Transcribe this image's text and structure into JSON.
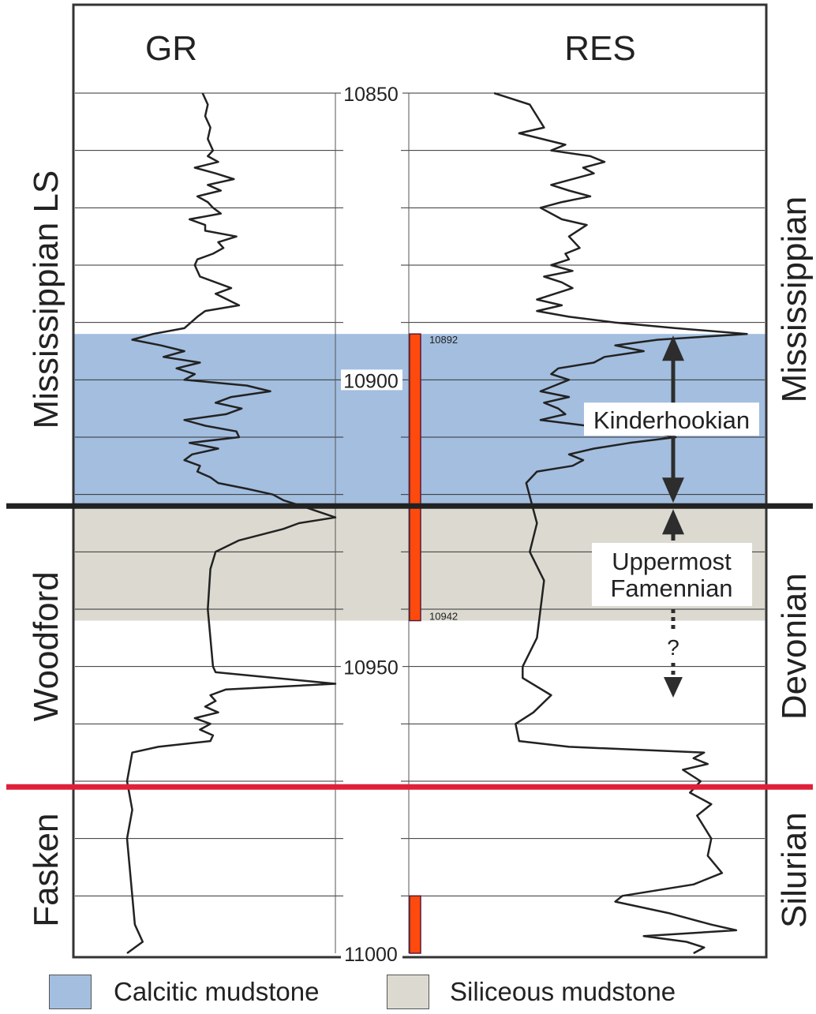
{
  "chart_data": {
    "type": "well-log",
    "tracks": [
      {
        "name": "GR",
        "curve": [
          [
            10850,
            0.49
          ],
          [
            10852,
            0.51
          ],
          [
            10854,
            0.5
          ],
          [
            10856,
            0.52
          ],
          [
            10858,
            0.51
          ],
          [
            10860,
            0.53
          ],
          [
            10861,
            0.51
          ],
          [
            10862,
            0.55
          ],
          [
            10863,
            0.46
          ],
          [
            10864,
            0.54
          ],
          [
            10865,
            0.61
          ],
          [
            10866,
            0.51
          ],
          [
            10867,
            0.56
          ],
          [
            10868,
            0.47
          ],
          [
            10869,
            0.51
          ],
          [
            10870,
            0.53
          ],
          [
            10871,
            0.56
          ],
          [
            10872,
            0.44
          ],
          [
            10873,
            0.5
          ],
          [
            10874,
            0.5
          ],
          [
            10875,
            0.62
          ],
          [
            10876,
            0.55
          ],
          [
            10877,
            0.57
          ],
          [
            10878,
            0.53
          ],
          [
            10879,
            0.47
          ],
          [
            10880,
            0.46
          ],
          [
            10882,
            0.48
          ],
          [
            10884,
            0.6
          ],
          [
            10885,
            0.54
          ],
          [
            10887,
            0.63
          ],
          [
            10888,
            0.5
          ],
          [
            10889,
            0.47
          ],
          [
            10891,
            0.42
          ],
          [
            10892,
            0.3
          ],
          [
            10893,
            0.22
          ],
          [
            10894,
            0.33
          ],
          [
            10895,
            0.42
          ],
          [
            10896,
            0.34
          ],
          [
            10897,
            0.48
          ],
          [
            10898,
            0.39
          ],
          [
            10899,
            0.46
          ],
          [
            10900,
            0.42
          ],
          [
            10901,
            0.66
          ],
          [
            10902,
            0.75
          ],
          [
            10903,
            0.6
          ],
          [
            10904,
            0.54
          ],
          [
            10905,
            0.64
          ],
          [
            10906,
            0.58
          ],
          [
            10907,
            0.42
          ],
          [
            10908,
            0.5
          ],
          [
            10909,
            0.62
          ],
          [
            10910,
            0.63
          ],
          [
            10911,
            0.44
          ],
          [
            10912,
            0.55
          ],
          [
            10913,
            0.45
          ],
          [
            10914,
            0.42
          ],
          [
            10915,
            0.48
          ],
          [
            10916,
            0.47
          ],
          [
            10917,
            0.52
          ],
          [
            10918,
            0.55
          ],
          [
            10919,
            0.66
          ],
          [
            10920,
            0.76
          ],
          [
            10921,
            0.8
          ],
          [
            10922,
            0.87
          ],
          [
            10924,
            1.0
          ],
          [
            10925,
            0.86
          ],
          [
            10926,
            0.8
          ],
          [
            10928,
            0.63
          ],
          [
            10930,
            0.54
          ],
          [
            10933,
            0.52
          ],
          [
            10940,
            0.51
          ],
          [
            10950,
            0.53
          ],
          [
            10951,
            0.54
          ],
          [
            10953,
            1.0
          ],
          [
            10954,
            0.58
          ],
          [
            10955,
            0.52
          ],
          [
            10956,
            0.54
          ],
          [
            10957,
            0.5
          ],
          [
            10958,
            0.55
          ],
          [
            10959,
            0.46
          ],
          [
            10960,
            0.52
          ],
          [
            10961,
            0.48
          ],
          [
            10962,
            0.53
          ],
          [
            10963,
            0.52
          ],
          [
            10964,
            0.32
          ],
          [
            10965,
            0.22
          ],
          [
            10970,
            0.2
          ],
          [
            10975,
            0.22
          ],
          [
            10980,
            0.2
          ],
          [
            10985,
            0.21
          ],
          [
            10990,
            0.22
          ],
          [
            10995,
            0.23
          ],
          [
            10998,
            0.26
          ],
          [
            11000,
            0.2
          ]
        ]
      },
      {
        "name": "RES",
        "curve": [
          [
            10850,
            0.24
          ],
          [
            10852,
            0.34
          ],
          [
            10854,
            0.36
          ],
          [
            10856,
            0.38
          ],
          [
            10857,
            0.31
          ],
          [
            10859,
            0.44
          ],
          [
            10860,
            0.4
          ],
          [
            10861,
            0.51
          ],
          [
            10862,
            0.55
          ],
          [
            10863,
            0.49
          ],
          [
            10864,
            0.52
          ],
          [
            10866,
            0.4
          ],
          [
            10867,
            0.45
          ],
          [
            10868,
            0.51
          ],
          [
            10869,
            0.43
          ],
          [
            10870,
            0.37
          ],
          [
            10872,
            0.43
          ],
          [
            10873,
            0.5
          ],
          [
            10875,
            0.45
          ],
          [
            10877,
            0.48
          ],
          [
            10878,
            0.44
          ],
          [
            10879,
            0.45
          ],
          [
            10880,
            0.4
          ],
          [
            10881,
            0.46
          ],
          [
            10882,
            0.38
          ],
          [
            10883,
            0.43
          ],
          [
            10884,
            0.46
          ],
          [
            10886,
            0.36
          ],
          [
            10887,
            0.43
          ],
          [
            10888,
            0.36
          ],
          [
            10889,
            0.45
          ],
          [
            10890,
            0.58
          ],
          [
            10891,
            0.75
          ],
          [
            10892,
            0.95
          ],
          [
            10893,
            0.7
          ],
          [
            10894,
            0.58
          ],
          [
            10895,
            0.66
          ],
          [
            10896,
            0.55
          ],
          [
            10897,
            0.52
          ],
          [
            10898,
            0.42
          ],
          [
            10899,
            0.4
          ],
          [
            10900,
            0.45
          ],
          [
            10901,
            0.41
          ],
          [
            10902,
            0.37
          ],
          [
            10903,
            0.45
          ],
          [
            10904,
            0.38
          ],
          [
            10905,
            0.42
          ],
          [
            10906,
            0.44
          ],
          [
            10907,
            0.37
          ],
          [
            10908,
            0.5
          ],
          [
            10909,
            0.67
          ],
          [
            10910,
            0.75
          ],
          [
            10911,
            0.62
          ],
          [
            10912,
            0.52
          ],
          [
            10913,
            0.45
          ],
          [
            10914,
            0.49
          ],
          [
            10915,
            0.46
          ],
          [
            10916,
            0.36
          ],
          [
            10918,
            0.33
          ],
          [
            10925,
            0.36
          ],
          [
            10930,
            0.34
          ],
          [
            10935,
            0.38
          ],
          [
            10940,
            0.37
          ],
          [
            10945,
            0.36
          ],
          [
            10950,
            0.32
          ],
          [
            10952,
            0.32
          ],
          [
            10955,
            0.4
          ],
          [
            10958,
            0.35
          ],
          [
            10960,
            0.3
          ],
          [
            10963,
            0.31
          ],
          [
            10964,
            0.45
          ],
          [
            10965,
            0.83
          ],
          [
            10966,
            0.8
          ],
          [
            10967,
            0.84
          ],
          [
            10968,
            0.77
          ],
          [
            10970,
            0.82
          ],
          [
            10972,
            0.79
          ],
          [
            10974,
            0.85
          ],
          [
            10976,
            0.81
          ],
          [
            10978,
            0.83
          ],
          [
            10980,
            0.85
          ],
          [
            10983,
            0.84
          ],
          [
            10986,
            0.88
          ],
          [
            10988,
            0.8
          ],
          [
            10990,
            0.6
          ],
          [
            10991,
            0.58
          ],
          [
            10993,
            0.73
          ],
          [
            10995,
            0.85
          ],
          [
            10996,
            0.92
          ],
          [
            10997,
            0.66
          ],
          [
            10998,
            0.78
          ],
          [
            10999,
            0.83
          ],
          [
            11000,
            0.8
          ]
        ]
      }
    ],
    "depth_range": [
      10850,
      11000
    ],
    "depth_ticks": [
      10850,
      10900,
      10950,
      11000
    ],
    "depth_scale_labels": [
      "10850",
      "10900",
      "10950",
      "11000"
    ],
    "zones": [
      {
        "lithology": "Calcitic mudstone",
        "top": 10892,
        "base": 10922,
        "color": "#a3bedf"
      },
      {
        "lithology": "Siliceous mudstone",
        "top": 10922,
        "base": 10942,
        "color": "#dcdad0"
      }
    ],
    "core_intervals": [
      {
        "top": 10892,
        "base": 10942,
        "top_label": "10892",
        "base_label": "10942"
      },
      {
        "top": 10990,
        "base": 11000
      }
    ],
    "boundaries": [
      {
        "depth": 10922,
        "color": "#222222"
      },
      {
        "depth": 10971,
        "color": "#e0203a"
      }
    ],
    "formations": [
      {
        "name": "Mississippian LS",
        "top": 10850,
        "base": 10922
      },
      {
        "name": "Woodford",
        "top": 10922,
        "base": 10971
      },
      {
        "name": "Fasken",
        "top": 10971,
        "base": 11000
      }
    ],
    "systems": [
      {
        "name": "Mississippian",
        "top": 10850,
        "base": 10922
      },
      {
        "name": "Devonian",
        "top": 10922,
        "base": 10971
      },
      {
        "name": "Silurian",
        "top": 10971,
        "base": 11000
      }
    ],
    "annotations": [
      {
        "text": "Kinderhookian",
        "top": 10892,
        "base": 10922
      },
      {
        "lines": [
          "Uppermost",
          "Famennian"
        ],
        "top": 10922,
        "base": 10955,
        "query": "?"
      }
    ]
  },
  "legend": [
    {
      "label": "Calcitic mudstone",
      "color": "#a3bedf"
    },
    {
      "label": "Siliceous mudstone",
      "color": "#dcdad0"
    }
  ]
}
